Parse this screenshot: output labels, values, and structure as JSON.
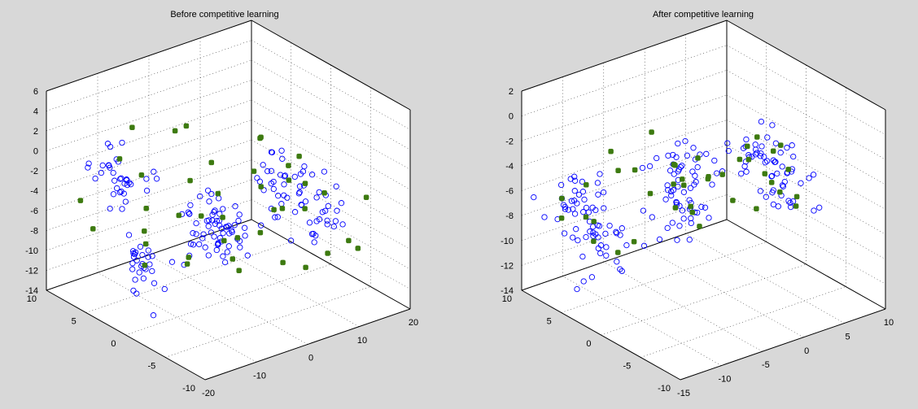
{
  "colors": {
    "background": "#d8d8d8",
    "pane": "#ffffff",
    "data_points": "#0000ff",
    "weights": "#3d7a10"
  },
  "chart_data": [
    {
      "type": "scatter",
      "title": "Before competitive learning",
      "xlim": [
        -20,
        20
      ],
      "ylim": [
        -10,
        10
      ],
      "zlim": [
        -14,
        6
      ],
      "x_ticks": [
        -20,
        -10,
        0,
        10,
        20
      ],
      "y_ticks": [
        -10,
        -5,
        0,
        5,
        10
      ],
      "z_ticks": [
        -14,
        -12,
        -10,
        -8,
        -6,
        -4,
        -2,
        0,
        2,
        4,
        6
      ],
      "grid": true,
      "series": [
        {
          "marker": "open-circle",
          "color": "#0000ff",
          "clusters": [
            {
              "center": [
                -12,
                6,
                -2
              ],
              "spread": [
                2,
                1.5,
                1.5
              ],
              "count": 35
            },
            {
              "center": [
                -10,
                -5,
                -2
              ],
              "spread": [
                2,
                1.5,
                1.5
              ],
              "count": 30
            },
            {
              "center": [
                -12,
                3,
                -10
              ],
              "spread": [
                2,
                1.5,
                1.5
              ],
              "count": 30
            },
            {
              "center": [
                0,
                2,
                -8
              ],
              "spread": [
                2,
                1.5,
                1.5
              ],
              "count": 35
            },
            {
              "center": [
                10,
                0,
                -4
              ],
              "spread": [
                2,
                1.5,
                1.5
              ],
              "count": 30
            },
            {
              "center": [
                8,
                -6,
                -4
              ],
              "spread": [
                2,
                1.5,
                1.5
              ],
              "count": 30
            }
          ]
        },
        {
          "marker": "filled-square",
          "color": "#3d7a10",
          "points": [
            [
              -18,
              7,
              -4
            ],
            [
              -15,
              4,
              1
            ],
            [
              -13,
              2,
              -7
            ],
            [
              -11,
              5,
              3
            ],
            [
              -9,
              -1,
              0
            ],
            [
              -7,
              6,
              -12
            ],
            [
              -5,
              3,
              -6
            ],
            [
              -4,
              8,
              -10
            ],
            [
              -2,
              0,
              -3
            ],
            [
              0,
              5,
              -12
            ],
            [
              0,
              -4,
              4
            ],
            [
              2,
              2,
              -7
            ],
            [
              3,
              -7,
              3
            ],
            [
              4,
              6,
              -9
            ],
            [
              5,
              0,
              -2
            ],
            [
              6,
              -3,
              -10
            ],
            [
              7,
              -8,
              -7
            ],
            [
              8,
              4,
              -11
            ],
            [
              9,
              -1,
              -6
            ],
            [
              10,
              7,
              -13
            ],
            [
              11,
              -5,
              -3
            ],
            [
              12,
              2,
              -8
            ],
            [
              13,
              -9,
              -2
            ],
            [
              14,
              5,
              -12
            ],
            [
              15,
              0,
              -5
            ],
            [
              -6,
              -8,
              2
            ],
            [
              -3,
              9,
              -5
            ],
            [
              1,
              -9,
              -1
            ],
            [
              16,
              -6,
              -9
            ],
            [
              -8,
              0,
              -9
            ],
            [
              -16,
              0,
              -2
            ],
            [
              2,
              8,
              -1
            ],
            [
              6,
              6,
              -4
            ],
            [
              -1,
              -2,
              -10
            ],
            [
              11,
              3,
              -1
            ],
            [
              -10,
              -7,
              -5
            ],
            [
              18,
              4,
              -7
            ],
            [
              4,
              -5,
              1
            ],
            [
              -14,
              8,
              -8
            ],
            [
              8,
              -10,
              -5
            ],
            [
              -2,
              4,
              2
            ],
            [
              12,
              -2,
              -12
            ]
          ]
        }
      ]
    },
    {
      "type": "scatter",
      "title": "After competitive learning",
      "xlim": [
        -15,
        10
      ],
      "ylim": [
        -10,
        10
      ],
      "zlim": [
        -14,
        2
      ],
      "x_ticks": [
        -15,
        -10,
        -5,
        0,
        5,
        10
      ],
      "y_ticks": [
        -10,
        -5,
        0,
        5,
        10
      ],
      "z_ticks": [
        -14,
        -12,
        -10,
        -8,
        -6,
        -4,
        -2,
        0,
        2
      ],
      "grid": true,
      "series": [
        {
          "marker": "open-circle",
          "color": "#0000ff",
          "clusters": [
            {
              "center": [
                -12,
                6,
                -6
              ],
              "spread": [
                1.5,
                1.2,
                1.2
              ],
              "count": 35
            },
            {
              "center": [
                -10,
                -5,
                0
              ],
              "spread": [
                1.5,
                1.2,
                1.2
              ],
              "count": 30
            },
            {
              "center": [
                -12,
                3,
                -8
              ],
              "spread": [
                1.5,
                1.2,
                1.2
              ],
              "count": 30
            },
            {
              "center": [
                -3,
                2,
                -7
              ],
              "spread": [
                1.5,
                1.2,
                1.2
              ],
              "count": 35
            },
            {
              "center": [
                4,
                0,
                -4
              ],
              "spread": [
                1.5,
                1.2,
                1.2
              ],
              "count": 30
            },
            {
              "center": [
                2,
                -6,
                -4
              ],
              "spread": [
                1.5,
                1.2,
                1.2
              ],
              "count": 30
            }
          ]
        },
        {
          "marker": "filled-square",
          "color": "#3d7a10",
          "points": [
            [
              -13,
              7,
              -6
            ],
            [
              -12,
              5,
              -7
            ],
            [
              -11,
              6,
              -5
            ],
            [
              -14,
              6,
              -7
            ],
            [
              -10,
              -4,
              0
            ],
            [
              -9,
              -6,
              1
            ],
            [
              -11,
              -5,
              -1
            ],
            [
              -8,
              -3,
              -2
            ],
            [
              -13,
              3,
              -8
            ],
            [
              -11,
              2,
              -9
            ],
            [
              -12,
              4,
              -7
            ],
            [
              -10,
              1,
              -8
            ],
            [
              -4,
              2,
              -7
            ],
            [
              -2,
              3,
              -6
            ],
            [
              -3,
              0,
              -8
            ],
            [
              -1,
              1,
              -5
            ],
            [
              3,
              0,
              -4
            ],
            [
              5,
              1,
              -3
            ],
            [
              4,
              -1,
              -5
            ],
            [
              6,
              0,
              -4
            ],
            [
              1,
              -6,
              -4
            ],
            [
              3,
              -5,
              -3
            ],
            [
              2,
              -7,
              -5
            ],
            [
              0,
              -6,
              -3
            ],
            [
              -7,
              4,
              -4
            ],
            [
              -5,
              1,
              -3
            ],
            [
              -1,
              -3,
              -2
            ],
            [
              1,
              3,
              -6
            ],
            [
              -6,
              -2,
              -5
            ],
            [
              0,
              4,
              -9
            ],
            [
              -8,
              6,
              -3
            ],
            [
              2,
              -2,
              -7
            ],
            [
              -9,
              0,
              -4
            ],
            [
              5,
              -4,
              -6
            ],
            [
              -2,
              -5,
              0
            ],
            [
              -4,
              5,
              -2
            ],
            [
              3,
              2,
              -8
            ],
            [
              -6,
              -6,
              -1
            ],
            [
              4,
              -3,
              -2
            ],
            [
              -10,
              3,
              -3
            ]
          ]
        }
      ]
    }
  ]
}
